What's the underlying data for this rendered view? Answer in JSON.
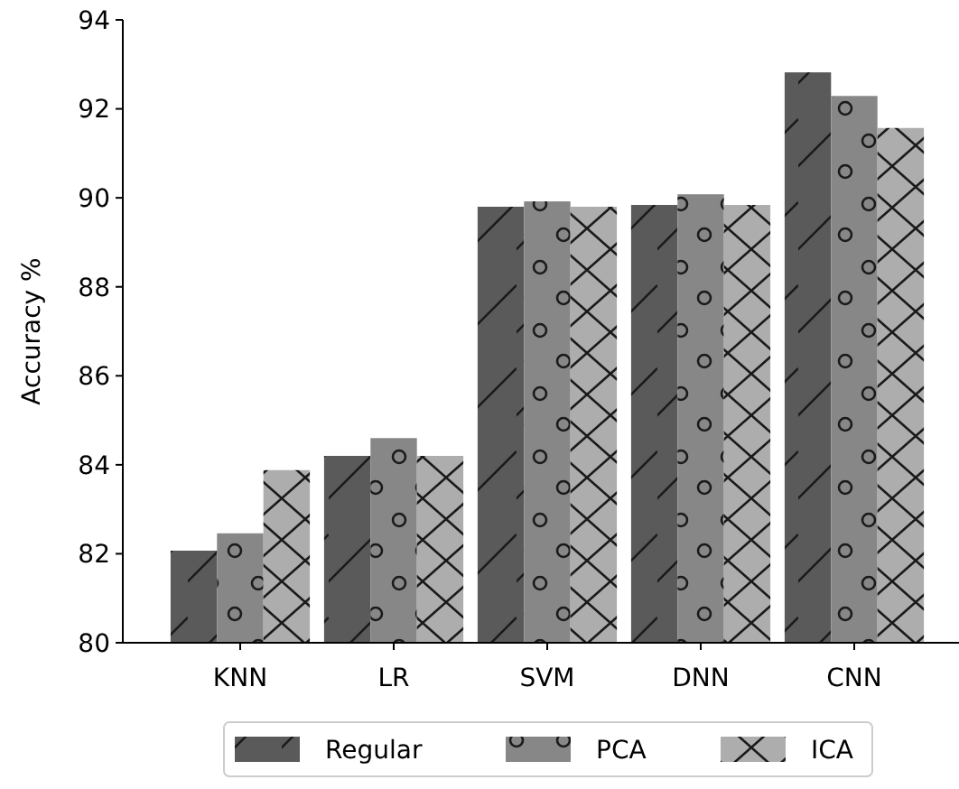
{
  "chart_data": {
    "type": "bar",
    "ylabel": "Accuracy %",
    "categories": [
      "KNN",
      "LR",
      "SVM",
      "DNN",
      "CNN"
    ],
    "series": [
      {
        "name": "Regular",
        "color": "#5a5a5a",
        "values": [
          82.07,
          84.2,
          89.8,
          89.84,
          92.82
        ]
      },
      {
        "name": "PCA",
        "color": "#878787",
        "values": [
          82.46,
          84.6,
          89.92,
          90.08,
          92.29
        ]
      },
      {
        "name": "ICA",
        "color": "#adadad",
        "values": [
          83.88,
          84.2,
          89.8,
          89.84,
          91.57
        ]
      }
    ],
    "ylim": [
      80,
      94
    ],
    "yticks": [
      80,
      82,
      84,
      86,
      88,
      90,
      92,
      94
    ],
    "legend": "bottom",
    "grid": false
  }
}
